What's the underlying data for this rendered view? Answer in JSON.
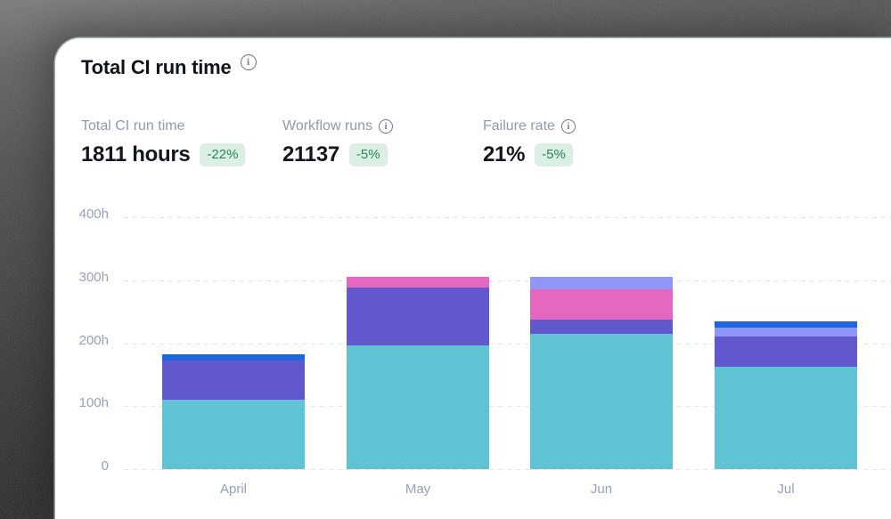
{
  "card": {
    "title": "Total CI run time",
    "metrics": [
      {
        "label": "Total CI run time",
        "value": "1811 hours",
        "badge": "-22%",
        "has_info": false
      },
      {
        "label": "Workflow runs",
        "value": "21137",
        "badge": "-5%",
        "has_info": true
      },
      {
        "label": "Failure rate",
        "value": "21%",
        "badge": "-5%",
        "has_info": true
      }
    ]
  },
  "colors": {
    "badge_bg": "#dcefe4",
    "badge_text": "#27875a",
    "metric_label": "#9199ac",
    "axis_label": "#98a1b3",
    "grid_line": "#e1e7f0"
  },
  "chart_data": {
    "type": "bar",
    "stacked": true,
    "title": "Total CI run time",
    "categories": [
      "April",
      "May",
      "Jun",
      "Jul"
    ],
    "series": [
      {
        "name": "series-teal",
        "color": "#5fc3d3",
        "values": [
          110,
          196,
          215,
          162
        ]
      },
      {
        "name": "series-purple",
        "color": "#6158cd",
        "values": [
          63,
          92,
          22,
          49
        ]
      },
      {
        "name": "series-pink",
        "color": "#e667c0",
        "values": [
          0,
          17,
          48,
          0
        ]
      },
      {
        "name": "series-lavender",
        "color": "#9095f8",
        "values": [
          0,
          0,
          20,
          14
        ]
      },
      {
        "name": "series-blue",
        "color": "#1e66dd",
        "values": [
          10,
          0,
          0,
          10
        ]
      }
    ],
    "totals_hours": [
      183,
      305,
      305,
      235
    ],
    "yticks": [
      {
        "label": "400h",
        "value": 400
      },
      {
        "label": "300h",
        "value": 300
      },
      {
        "label": "200h",
        "value": 200
      },
      {
        "label": "100h",
        "value": 100
      },
      {
        "label": "0",
        "value": 0
      }
    ],
    "ylim": [
      0,
      400
    ],
    "grid": true,
    "legend": "none"
  }
}
